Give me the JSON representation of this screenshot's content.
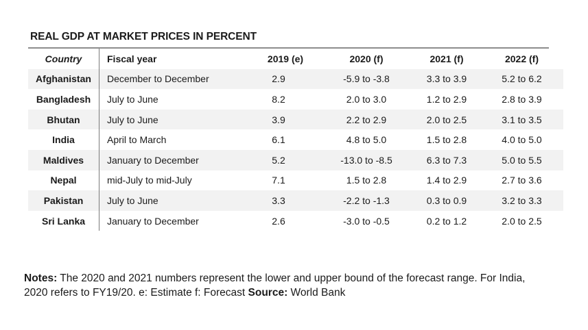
{
  "table": {
    "title": "REAL GDP AT MARKET PRICES IN PERCENT",
    "headers": {
      "country": "Country",
      "fiscal_year": "Fiscal year",
      "y2019": "2019 (e)",
      "y2020": "2020 (f)",
      "y2021": "2021 (f)",
      "y2022": "2022 (f)"
    },
    "rows": [
      {
        "country": "Afghanistan",
        "fiscal_year": "December to December",
        "y2019": "2.9",
        "y2020": "-5.9 to -3.8",
        "y2021": "3.3 to 3.9",
        "y2022": "5.2 to 6.2"
      },
      {
        "country": "Bangladesh",
        "fiscal_year": "July to June",
        "y2019": "8.2",
        "y2020": "2.0 to 3.0",
        "y2021": "1.2 to 2.9",
        "y2022": "2.8 to 3.9"
      },
      {
        "country": "Bhutan",
        "fiscal_year": "July to June",
        "y2019": "3.9",
        "y2020": "2.2 to 2.9",
        "y2021": "2.0 to 2.5",
        "y2022": "3.1 to 3.5"
      },
      {
        "country": "India",
        "fiscal_year": "April to March",
        "y2019": "6.1",
        "y2020": "4.8 to 5.0",
        "y2021": "1.5 to 2.8",
        "y2022": "4.0 to 5.0"
      },
      {
        "country": "Maldives",
        "fiscal_year": "January to December",
        "y2019": "5.2",
        "y2020": "-13.0 to -8.5",
        "y2021": "6.3 to 7.3",
        "y2022": "5.0 to 5.5"
      },
      {
        "country": "Nepal",
        "fiscal_year": "mid-July to mid-July",
        "y2019": "7.1",
        "y2020": "1.5 to 2.8",
        "y2021": "1.4 to 2.9",
        "y2022": "2.7 to 3.6"
      },
      {
        "country": "Pakistan",
        "fiscal_year": "July to June",
        "y2019": "3.3",
        "y2020": "-2.2 to -1.3",
        "y2021": "0.3 to 0.9",
        "y2022": "3.2 to 3.3"
      },
      {
        "country": "Sri Lanka",
        "fiscal_year": "January to December",
        "y2019": "2.6",
        "y2020": "-3.0 to -0.5",
        "y2021": "0.2 to 1.2",
        "y2022": "2.0 to 2.5"
      }
    ]
  },
  "notes": {
    "notes_label": "Notes:",
    "notes_text": " The 2020 and 2021 numbers represent the lower and upper bound of the forecast range. For India, 2020 refers to FY19/20. e: Estimate f: Forecast ",
    "source_label": "Source:",
    "source_text": " World Bank"
  }
}
